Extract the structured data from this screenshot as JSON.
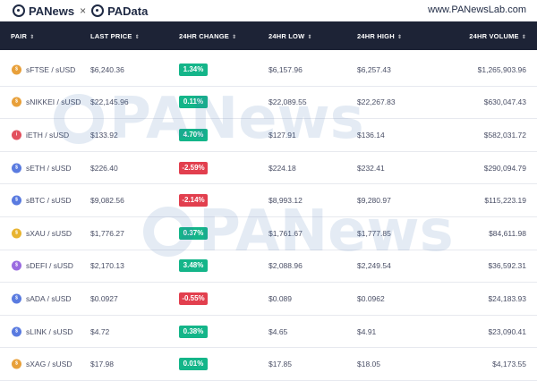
{
  "header": {
    "brand_left": "PANews",
    "separator": "×",
    "brand_right": "PAData",
    "site": "www.PANewsLab.com"
  },
  "columns": [
    {
      "label": "PAIR",
      "sort_icon": "sort-icon"
    },
    {
      "label": "LAST PRICE",
      "sort_icon": "sort-icon"
    },
    {
      "label": "24HR CHANGE",
      "sort_icon": "sort-icon"
    },
    {
      "label": "24HR LOW",
      "sort_icon": "sort-icon"
    },
    {
      "label": "24HR HIGH",
      "sort_icon": "sort-icon"
    },
    {
      "label": "24HR VOLUME",
      "sort_icon": "sort-icon"
    }
  ],
  "rows": [
    {
      "icon": "sftse-icon",
      "icon_text": "$",
      "icon_color": "#e8a03a",
      "pair": "sFTSE / sUSD",
      "last": "$6,240.36",
      "change": "1.34%",
      "dir": "up",
      "low": "$6,157.96",
      "high": "$6,257.43",
      "vol": "$1,265,903.96"
    },
    {
      "icon": "snikkei-icon",
      "icon_text": "$",
      "icon_color": "#e8a03a",
      "pair": "sNIKKEI / sUSD",
      "last": "$22,145.96",
      "change": "0.11%",
      "dir": "up",
      "low": "$22,089.55",
      "high": "$22,267.83",
      "vol": "$630,047.43"
    },
    {
      "icon": "ieth-icon",
      "icon_text": "i",
      "icon_color": "#e2505e",
      "pair": "iETH / sUSD",
      "last": "$133.92",
      "change": "4.70%",
      "dir": "up",
      "low": "$127.91",
      "high": "$136.14",
      "vol": "$582,031.72"
    },
    {
      "icon": "seth-icon",
      "icon_text": "$",
      "icon_color": "#5a7be0",
      "pair": "sETH / sUSD",
      "last": "$226.40",
      "change": "-2.59%",
      "dir": "down",
      "low": "$224.18",
      "high": "$232.41",
      "vol": "$290,094.79"
    },
    {
      "icon": "sbtc-icon",
      "icon_text": "$",
      "icon_color": "#5a7be0",
      "pair": "sBTC / sUSD",
      "last": "$9,082.56",
      "change": "-2.14%",
      "dir": "down",
      "low": "$8,993.12",
      "high": "$9,280.97",
      "vol": "$115,223.19"
    },
    {
      "icon": "sxau-icon",
      "icon_text": "$",
      "icon_color": "#e8b431",
      "pair": "sXAU / sUSD",
      "last": "$1,776.27",
      "change": "0.37%",
      "dir": "up",
      "low": "$1,761.67",
      "high": "$1,777.85",
      "vol": "$84,611.98"
    },
    {
      "icon": "sdefi-icon",
      "icon_text": "$",
      "icon_color": "#9a6be0",
      "pair": "sDEFI / sUSD",
      "last": "$2,170.13",
      "change": "3.48%",
      "dir": "up",
      "low": "$2,088.96",
      "high": "$2,249.54",
      "vol": "$36,592.31"
    },
    {
      "icon": "sada-icon",
      "icon_text": "$",
      "icon_color": "#5a7be0",
      "pair": "sADA / sUSD",
      "last": "$0.0927",
      "change": "-0.55%",
      "dir": "down",
      "low": "$0.089",
      "high": "$0.0962",
      "vol": "$24,183.93"
    },
    {
      "icon": "slink-icon",
      "icon_text": "$",
      "icon_color": "#5a7be0",
      "pair": "sLINK / sUSD",
      "last": "$4.72",
      "change": "0.38%",
      "dir": "up",
      "low": "$4.65",
      "high": "$4.91",
      "vol": "$23,090.41"
    },
    {
      "icon": "sxag-icon",
      "icon_text": "$",
      "icon_color": "#e8a03a",
      "pair": "sXAG / sUSD",
      "last": "$17.98",
      "change": "0.01%",
      "dir": "up",
      "low": "$17.85",
      "high": "$18.05",
      "vol": "$4,173.55"
    }
  ],
  "colors": {
    "header_bg": "#1d2336",
    "positive": "#14b589",
    "negative": "#e23f4e",
    "watermark": "#3a6fb0"
  },
  "watermark_text": "PANews"
}
